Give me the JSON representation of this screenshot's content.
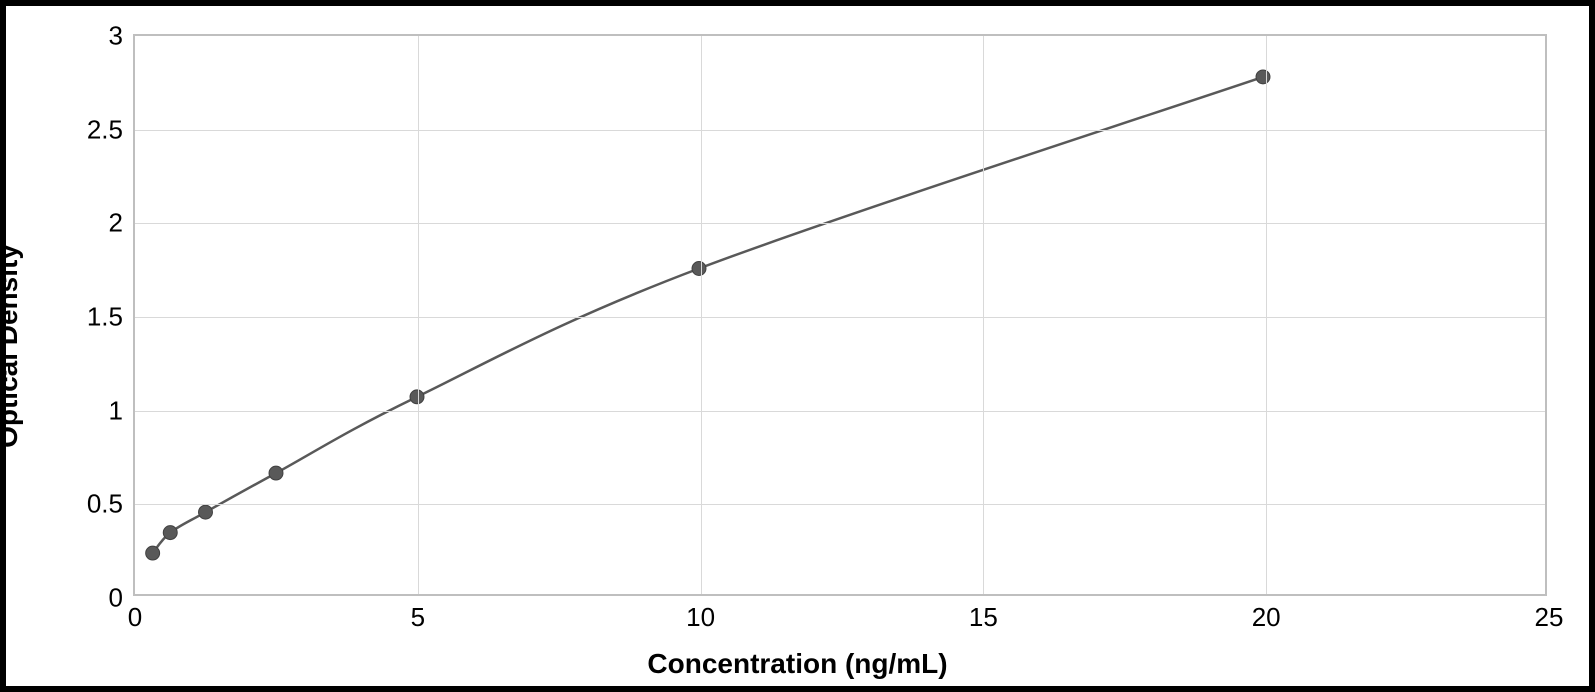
{
  "chart": {
    "type": "line",
    "xlabel": "Concentration (ng/mL)",
    "ylabel": "Optical Density",
    "label_fontsize": 28,
    "label_fontweight": 700,
    "tick_fontsize": 26,
    "background_color": "#ffffff",
    "plot_border_color": "#bfbfbf",
    "grid_color": "#d9d9d9",
    "line_color": "#595959",
    "marker_color": "#595959",
    "marker_border_color": "#404040",
    "line_width": 2.5,
    "marker_radius": 7,
    "xlim": [
      0,
      25
    ],
    "ylim": [
      0,
      3
    ],
    "xticks": [
      0,
      5,
      10,
      15,
      20,
      25
    ],
    "yticks": [
      0,
      0.5,
      1,
      1.5,
      2,
      2.5,
      3
    ],
    "xtick_labels": [
      "0",
      "5",
      "10",
      "15",
      "20",
      "25"
    ],
    "ytick_labels": [
      "0",
      "0.5",
      "1",
      "1.5",
      "2",
      "2.5",
      "3"
    ],
    "data": {
      "x": [
        0.313,
        0.625,
        1.25,
        2.5,
        5,
        10,
        20
      ],
      "y": [
        0.22,
        0.33,
        0.44,
        0.65,
        1.06,
        1.75,
        2.78
      ]
    }
  }
}
